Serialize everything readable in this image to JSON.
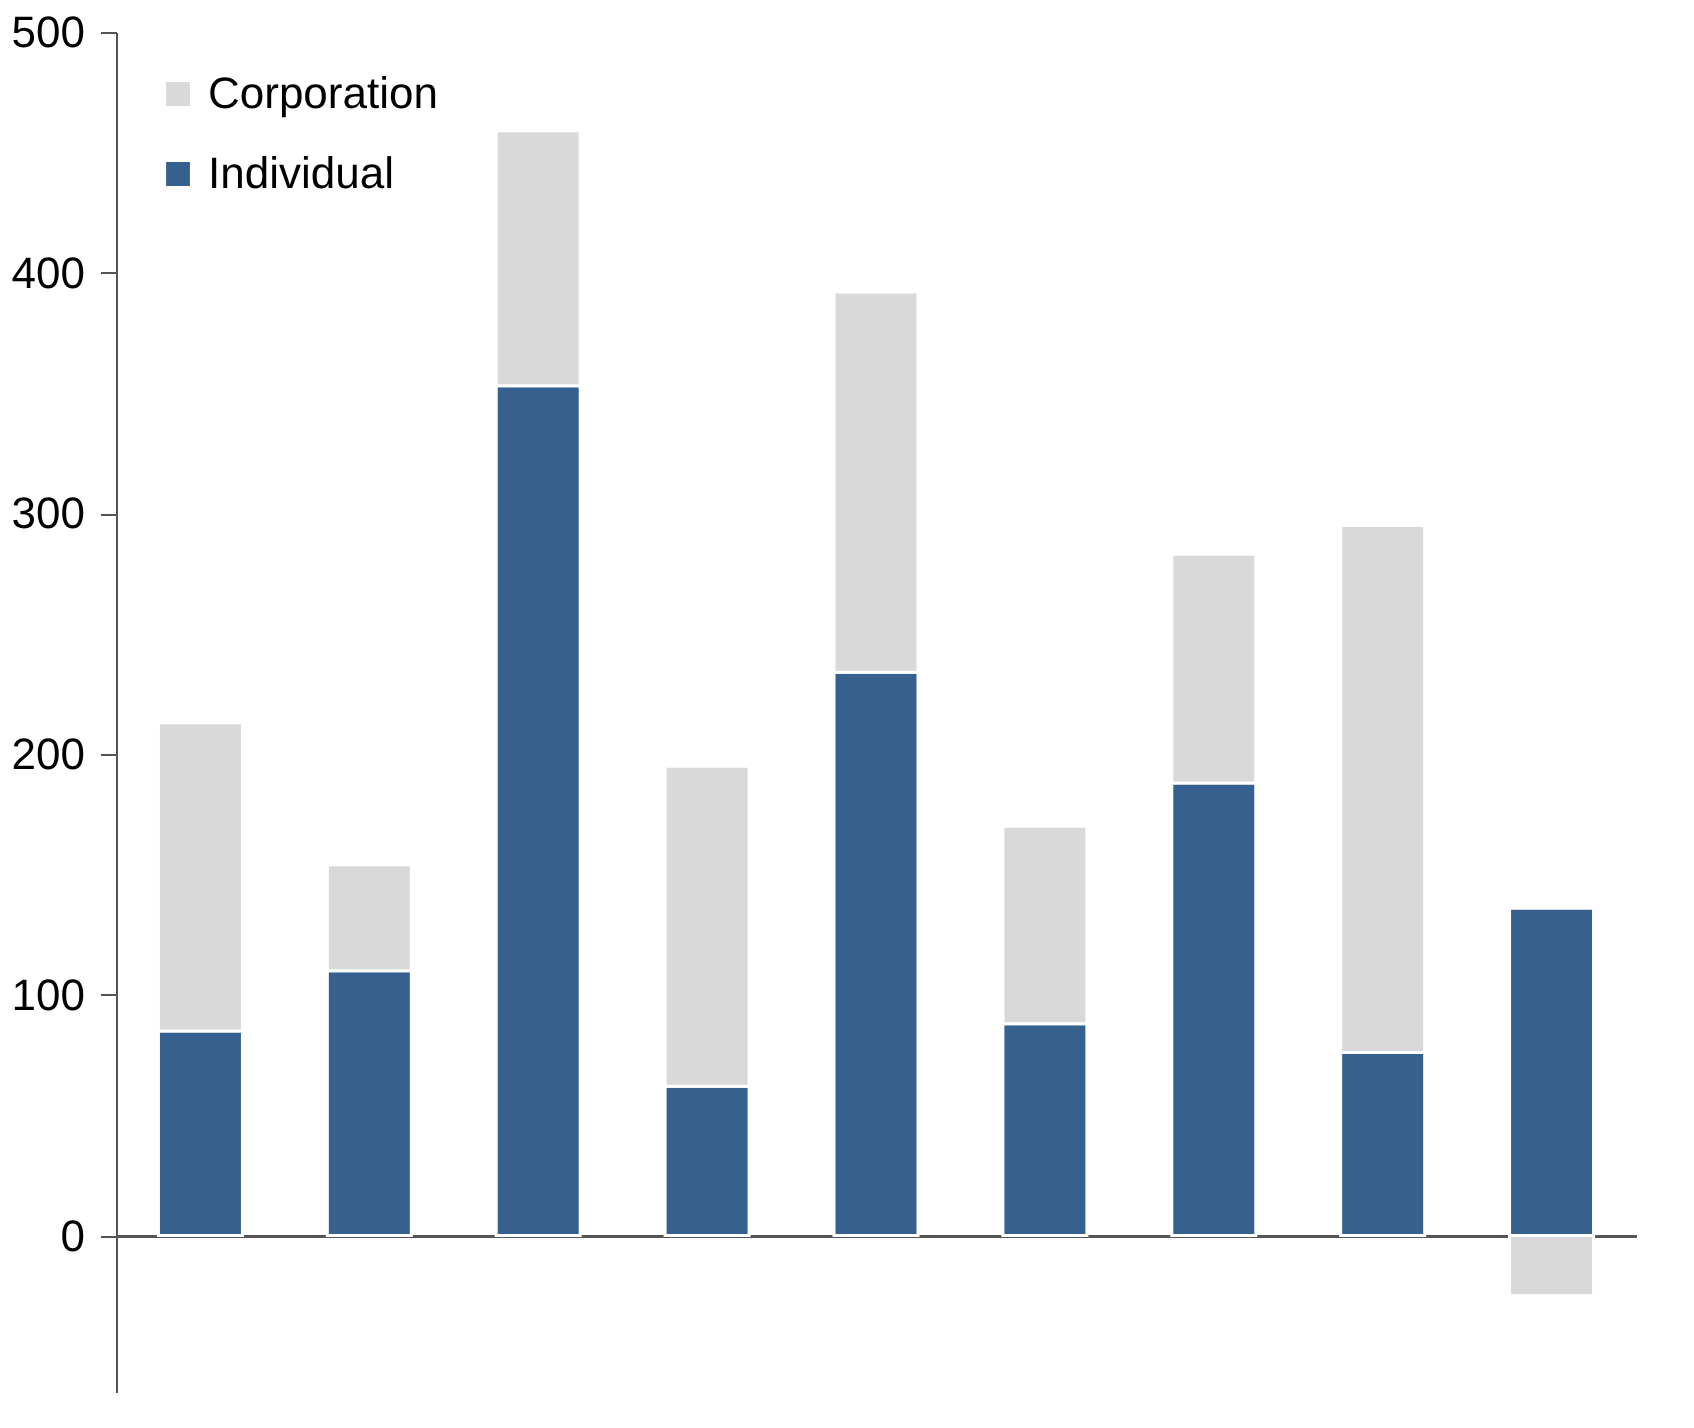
{
  "chart_data": {
    "type": "bar",
    "stacked": true,
    "categories": [
      null,
      null,
      null,
      null,
      null,
      null,
      null,
      null,
      null
    ],
    "series": [
      {
        "name": "Individual",
        "color": "#36618f",
        "values": [
          85,
          110,
          353,
          62,
          234,
          88,
          188,
          76,
          136
        ]
      },
      {
        "name": "Corporation",
        "color": "#d9d9d9",
        "values": [
          128,
          44,
          106,
          133,
          158,
          82,
          95,
          219,
          -25
        ]
      }
    ],
    "ylim": [
      -65,
      500
    ],
    "yticks": [
      0,
      100,
      200,
      300,
      400,
      500
    ],
    "legend": "top left",
    "tick_labels": "y"
  }
}
